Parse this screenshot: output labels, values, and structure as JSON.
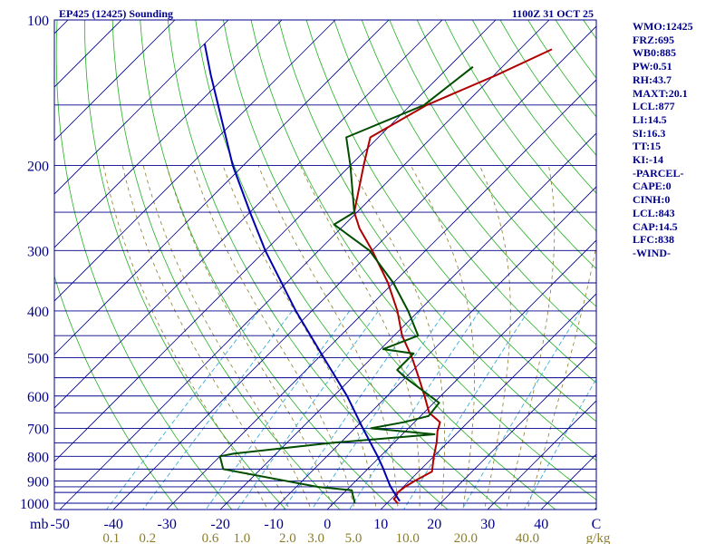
{
  "header": {
    "station": "EP425 (12425) Sounding",
    "time": "1100Z 31 OCT 25"
  },
  "stats": [
    "WMO:12425",
    "FRZ:695",
    "WB0:885",
    "PW:0.51",
    "RH:43.7",
    "MAXT:20.1",
    "LCL:877",
    "LI:14.5",
    "SI:16.3",
    "TT:15",
    "KI:-14",
    "-PARCEL-",
    "CAPE:0",
    "CINH:0",
    "LCL:843",
    "CAP:14.5",
    "LFC:838",
    "-WIND-"
  ],
  "colors": {
    "isobar": "#00008b",
    "isotherm": "#00008b",
    "dry_adiabat": "#22b022",
    "mixing_ratio": "#3aaed8",
    "moist_adiabat": "#8b7d2a",
    "temperature": "#b00000",
    "dewpoint": "#004d00",
    "parcel": "#0000b0"
  },
  "chart_data": {
    "type": "line",
    "title": "EP425 (12425) Sounding",
    "subtitle": "1100Z 31 OCT 25",
    "ylabel": "mb",
    "xlabel": "C",
    "x_axis_unit": "C",
    "y_axis_unit": "mb",
    "mixing_ratio_unit": "g/kg",
    "y_scale": "log",
    "y_reversed": true,
    "ylim": [
      1025,
      100
    ],
    "xlim_at_bottom": [
      -50,
      50
    ],
    "skew_deg": 45,
    "grid": true,
    "y_tick_labels": [
      "100",
      "200",
      "300",
      "400",
      "500",
      "600",
      "700",
      "800",
      "900",
      "1000"
    ],
    "x_tick_labels": [
      "-50",
      "-40",
      "-30",
      "-20",
      "-10",
      "0",
      "10",
      "20",
      "30",
      "40",
      "C"
    ],
    "mixing_ratio_labels": [
      "0.1",
      "0.2",
      "0.6",
      "1.0",
      "2.0",
      "3.0",
      "5.0",
      "10.0",
      "20.0",
      "40.0",
      "g/kg"
    ],
    "x_label_prefix": "mb",
    "isobars": [
      1000,
      950,
      925,
      900,
      850,
      800,
      750,
      700,
      650,
      600,
      550,
      500,
      450,
      400,
      350,
      300,
      250,
      200,
      150
    ],
    "series": [
      {
        "role": "temperature",
        "points": [
          {
            "p": 1000,
            "t": 12.0
          },
          {
            "p": 980,
            "t": 10.5
          },
          {
            "p": 970,
            "t": 10.5
          },
          {
            "p": 950,
            "t": 10.0
          },
          {
            "p": 925,
            "t": 10.3
          },
          {
            "p": 900,
            "t": 11.0
          },
          {
            "p": 860,
            "t": 12.5
          },
          {
            "p": 800,
            "t": 10.0
          },
          {
            "p": 750,
            "t": 8.0
          },
          {
            "p": 710,
            "t": 6.0
          },
          {
            "p": 680,
            "t": 4.8
          },
          {
            "p": 650,
            "t": 1.0
          },
          {
            "p": 600,
            "t": -3.0
          },
          {
            "p": 550,
            "t": -7.5
          },
          {
            "p": 500,
            "t": -12.5
          },
          {
            "p": 450,
            "t": -18.5
          },
          {
            "p": 400,
            "t": -24.0
          },
          {
            "p": 350,
            "t": -31.0
          },
          {
            "p": 300,
            "t": -40.0
          },
          {
            "p": 270,
            "t": -46.5
          },
          {
            "p": 250,
            "t": -50.5
          },
          {
            "p": 200,
            "t": -57.5
          },
          {
            "p": 175,
            "t": -61.5
          },
          {
            "p": 150,
            "t": -57.0
          },
          {
            "p": 130,
            "t": -49.5
          },
          {
            "p": 115,
            "t": -44.0
          }
        ]
      },
      {
        "role": "dewpoint",
        "points": [
          {
            "p": 1000,
            "t": 4.0
          },
          {
            "p": 960,
            "t": 2.0
          },
          {
            "p": 940,
            "t": 1.0
          },
          {
            "p": 925,
            "t": -6.0
          },
          {
            "p": 850,
            "t": -27.0
          },
          {
            "p": 800,
            "t": -30.0
          },
          {
            "p": 790,
            "t": -28.0
          },
          {
            "p": 750,
            "t": -11.5
          },
          {
            "p": 720,
            "t": 6.0
          },
          {
            "p": 700,
            "t": -7.0
          },
          {
            "p": 680,
            "t": -2.0
          },
          {
            "p": 660,
            "t": 1.5
          },
          {
            "p": 620,
            "t": 1.0
          },
          {
            "p": 550,
            "t": -10.0
          },
          {
            "p": 530,
            "t": -13.0
          },
          {
            "p": 490,
            "t": -13.0
          },
          {
            "p": 480,
            "t": -19.5
          },
          {
            "p": 450,
            "t": -15.5
          },
          {
            "p": 400,
            "t": -22.0
          },
          {
            "p": 350,
            "t": -30.0
          },
          {
            "p": 300,
            "t": -40.5
          },
          {
            "p": 265,
            "t": -52.0
          },
          {
            "p": 250,
            "t": -50.5
          },
          {
            "p": 200,
            "t": -60.0
          },
          {
            "p": 175,
            "t": -66.0
          },
          {
            "p": 150,
            "t": -57.5
          },
          {
            "p": 125,
            "t": -55.5
          }
        ]
      },
      {
        "role": "parcel",
        "points": [
          {
            "p": 990,
            "t": 12.0
          },
          {
            "p": 960,
            "t": 10.0
          },
          {
            "p": 920,
            "t": 7.3
          },
          {
            "p": 843,
            "t": 2.5
          },
          {
            "p": 800,
            "t": -0.5
          },
          {
            "p": 700,
            "t": -8.5
          },
          {
            "p": 600,
            "t": -17.5
          },
          {
            "p": 500,
            "t": -29.0
          },
          {
            "p": 400,
            "t": -43.0
          },
          {
            "p": 300,
            "t": -60.0
          },
          {
            "p": 250,
            "t": -70.0
          },
          {
            "p": 200,
            "t": -82.0
          },
          {
            "p": 150,
            "t": -96.0
          },
          {
            "p": 130,
            "t": -103.0
          },
          {
            "p": 112,
            "t": -110.0
          }
        ]
      }
    ]
  }
}
